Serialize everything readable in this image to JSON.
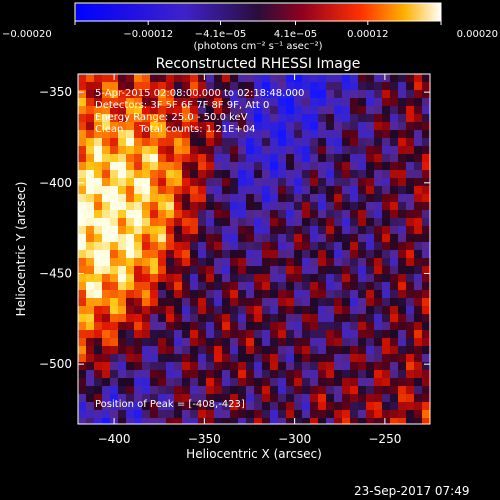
{
  "chart_data": {
    "type": "heatmap",
    "title": "Reconstructed RHESSI Image",
    "xlabel": "Heliocentric X (arcsec)",
    "ylabel": "Heliocentric Y (arcsec)",
    "xlim": [
      -420,
      -225
    ],
    "ylim": [
      -533,
      -340
    ],
    "x_ticks": [
      -400,
      -350,
      -300,
      -250
    ],
    "x_tick_labels": [
      "−400",
      "−350",
      "−300",
      "−250"
    ],
    "y_ticks": [
      -350,
      -400,
      -450,
      -500
    ],
    "y_tick_labels": [
      "−350",
      "−400",
      "−450",
      "−500"
    ],
    "colorbar": {
      "range": [
        -0.0002,
        0.0002
      ],
      "ticks": [
        -0.0002,
        -0.00012,
        -4.1e-05,
        4.1e-05,
        0.00012,
        0.0002
      ],
      "tick_labels": [
        "−0.00020",
        "−0.00012",
        "−4.1e−05",
        "4.1e−05",
        "0.00012",
        "0.00020"
      ],
      "units_label": "(photons cm⁻² s⁻¹ asec⁻²)"
    },
    "grid": false,
    "peak": [
      -408,
      -423
    ]
  },
  "annotations": [
    "5-Apr-2015 02:08:00.000 to 02:18:48.000",
    "Detectors: 3F 5F 6F 7F 8F 9F, Att 0",
    "Energy Range: 25.0 - 50.0 keV",
    "Clean     Total counts: 1.21E+04"
  ],
  "peak_label": "Position of Peak = [-408,-423]",
  "timestamp": "23-Sep-2017 07:49",
  "colors": {
    "background": "#000000",
    "text": "#ffffff",
    "negative": "#0000ff",
    "positive": "#ff2000",
    "max": "#ffffff"
  }
}
